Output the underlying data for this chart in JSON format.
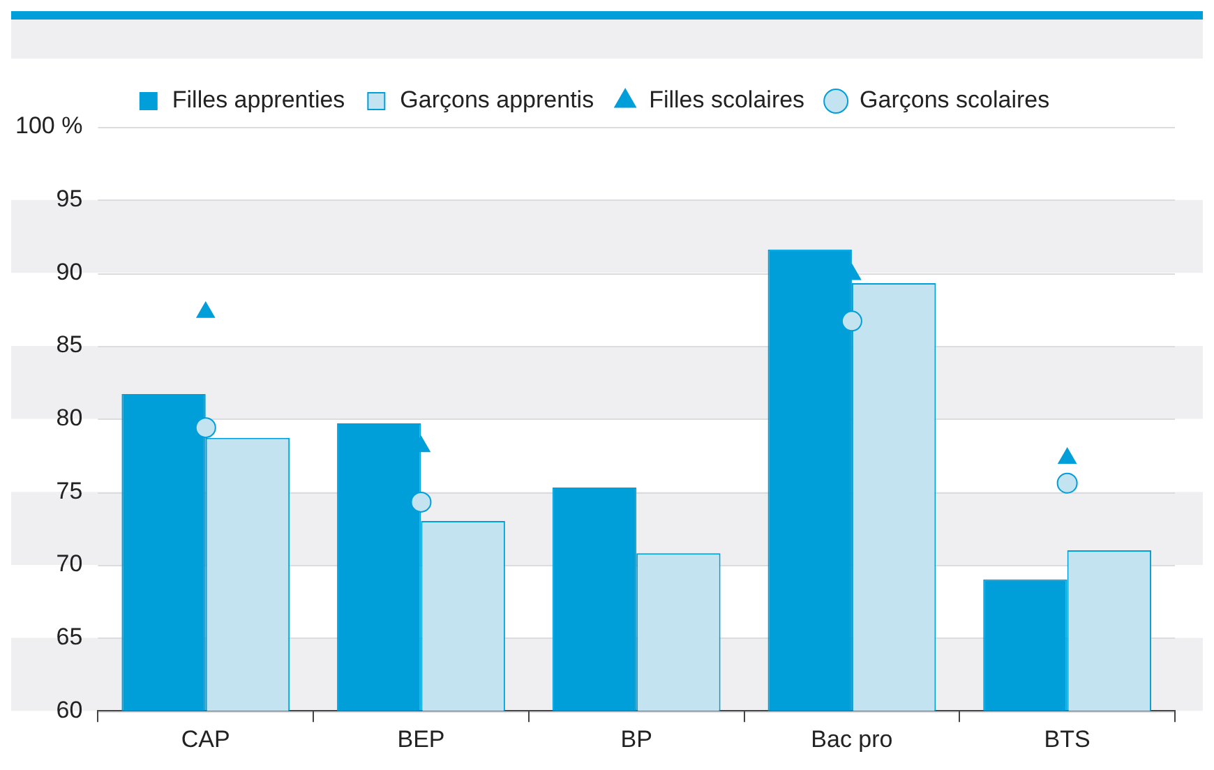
{
  "chart_data": {
    "type": "bar",
    "categories": [
      "CAP",
      "BEP",
      "BP",
      "Bac pro",
      "BTS"
    ],
    "series": [
      {
        "name": "Filles apprenties",
        "color": "#009fda",
        "values": [
          81.7,
          79.7,
          75.3,
          91.6,
          69.0
        ]
      },
      {
        "name": "Garçons apprentis",
        "color": "#c3e3f1",
        "values": [
          78.7,
          73.0,
          70.8,
          89.3,
          71.0
        ]
      },
      {
        "name": "Filles scolaires",
        "type": "scatter",
        "marker": "triangle",
        "color": "#009fda",
        "values": [
          87.3,
          78.1,
          null,
          89.9,
          77.3
        ]
      },
      {
        "name": "Garçons scolaires",
        "type": "scatter",
        "marker": "circle",
        "color": "#c3e3f1",
        "values": [
          79.4,
          74.3,
          null,
          86.7,
          75.6
        ]
      }
    ],
    "ylim": [
      60,
      100
    ],
    "yticks": [
      60,
      65,
      70,
      75,
      80,
      85,
      90,
      95,
      {
        "value": 100,
        "label": "100 %"
      }
    ],
    "grid": "y",
    "legend": "top"
  }
}
